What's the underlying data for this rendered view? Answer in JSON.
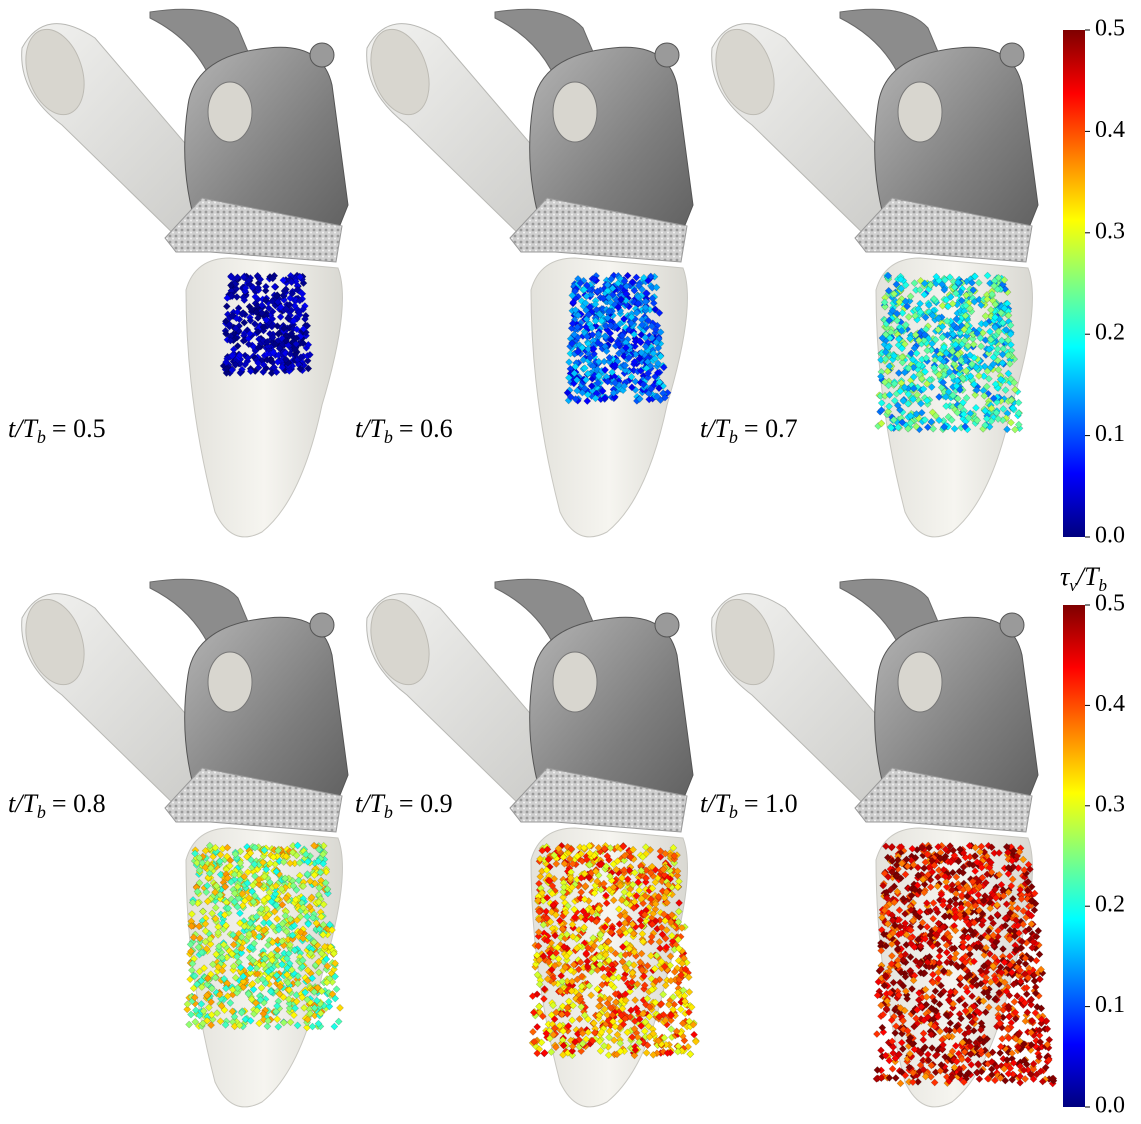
{
  "panels": [
    {
      "var": "t/T",
      "sub": "b",
      "eq": "= 0.5"
    },
    {
      "var": "t/T",
      "sub": "b",
      "eq": "= 0.6"
    },
    {
      "var": "t/T",
      "sub": "b",
      "eq": "= 0.7"
    },
    {
      "var": "t/T",
      "sub": "b",
      "eq": "= 0.8"
    },
    {
      "var": "t/T",
      "sub": "b",
      "eq": "= 0.9"
    },
    {
      "var": "t/T",
      "sub": "b",
      "eq": "= 1.0"
    }
  ],
  "colorbar": {
    "title": [
      "τ",
      "v",
      "/T",
      "b"
    ],
    "range": [
      0,
      0.5
    ],
    "ticks": [
      {
        "value": 0,
        "label": "0.0"
      },
      0.1,
      0.2,
      0.3,
      0.4,
      0.5
    ],
    "colormap": [
      "#00007f",
      "#0000ff",
      "#0080ff",
      "#00ffff",
      "#80ff80",
      "#ffff00",
      "#ff8000",
      "#ff0000",
      "#7f0000"
    ]
  }
}
